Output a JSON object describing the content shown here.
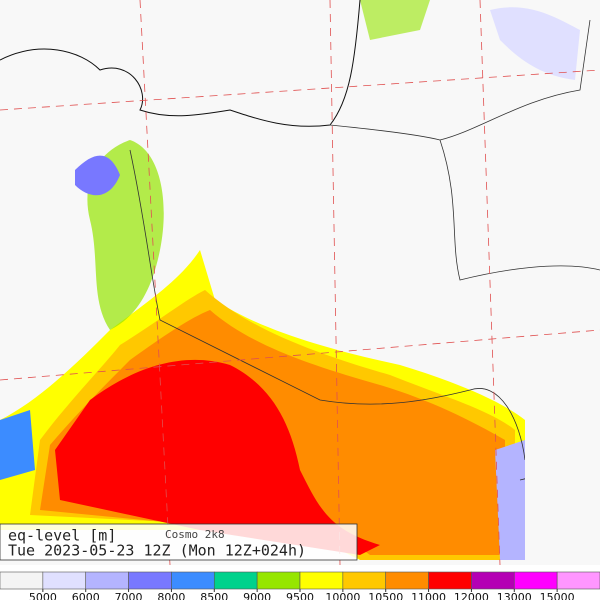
{
  "header": {
    "title": "eq-level [m]",
    "model": "Cosmo 2k8",
    "time": "Tue 2023-05-23 12Z (Mon 12Z+024h)"
  },
  "colorbar": {
    "colors": [
      "#f4f4f4",
      "#e0e0ff",
      "#b4b4ff",
      "#7878ff",
      "#3c8cff",
      "#00d28c",
      "#96e600",
      "#ffff00",
      "#ffc800",
      "#ff8c00",
      "#ff0000",
      "#b400b4",
      "#ff00ff",
      "#ff96ff"
    ],
    "ticks": [
      5000,
      6000,
      7000,
      8000,
      8500,
      9000,
      9500,
      10000,
      10500,
      11000,
      12000,
      13000,
      15000
    ]
  }
}
